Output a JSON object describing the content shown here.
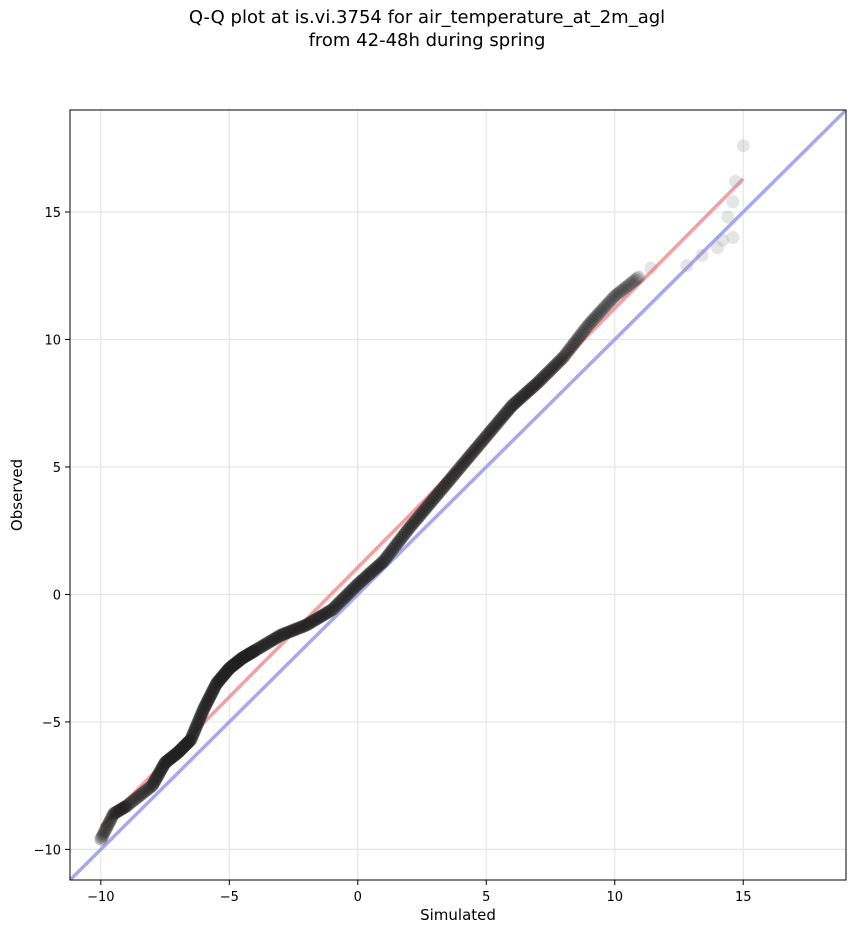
{
  "chart_data": {
    "type": "scatter",
    "title_line1": "Q-Q plot at is.vi.3754 for air_temperature_at_2m_agl",
    "title_line2": "from 42-48h during spring",
    "xlabel": "Simulated",
    "ylabel": "Observed",
    "xlim": [
      -11.2,
      19.0
    ],
    "ylim": [
      -11.2,
      19.0
    ],
    "xticks": [
      -10,
      -5,
      0,
      5,
      10,
      15
    ],
    "yticks": [
      -10,
      -5,
      0,
      5,
      10,
      15
    ],
    "xtick_labels": [
      "−10",
      "−5",
      "0",
      "5",
      "10",
      "15"
    ],
    "ytick_labels": [
      "−10",
      "−5",
      "0",
      "5",
      "10",
      "15"
    ],
    "grid": true,
    "quantile_curve": [
      [
        -10.0,
        -9.6
      ],
      [
        -9.5,
        -8.6
      ],
      [
        -9.0,
        -8.3
      ],
      [
        -8.0,
        -7.5
      ],
      [
        -7.5,
        -6.6
      ],
      [
        -7.0,
        -6.2
      ],
      [
        -6.5,
        -5.7
      ],
      [
        -6.0,
        -4.5
      ],
      [
        -5.5,
        -3.5
      ],
      [
        -5.0,
        -2.9
      ],
      [
        -4.5,
        -2.5
      ],
      [
        -4.0,
        -2.2
      ],
      [
        -3.0,
        -1.6
      ],
      [
        -2.0,
        -1.2
      ],
      [
        -1.0,
        -0.6
      ],
      [
        0.0,
        0.4
      ],
      [
        1.0,
        1.3
      ],
      [
        2.0,
        2.6
      ],
      [
        3.0,
        3.8
      ],
      [
        4.0,
        5.0
      ],
      [
        5.0,
        6.2
      ],
      [
        6.0,
        7.4
      ],
      [
        7.0,
        8.3
      ],
      [
        8.0,
        9.3
      ],
      [
        9.0,
        10.6
      ],
      [
        10.0,
        11.7
      ],
      [
        11.0,
        12.5
      ]
    ],
    "tail_points": [
      [
        11.4,
        12.8
      ],
      [
        12.8,
        12.9
      ],
      [
        13.4,
        13.3
      ],
      [
        14.0,
        13.6
      ],
      [
        14.2,
        13.9
      ],
      [
        14.6,
        14.0
      ],
      [
        14.4,
        14.8
      ],
      [
        14.6,
        15.4
      ],
      [
        14.7,
        16.2
      ],
      [
        15.0,
        17.6
      ]
    ],
    "series": [
      {
        "name": "quantiles",
        "color": "#222222"
      },
      {
        "name": "fit",
        "color": "#f08080",
        "x": [
          -10.0,
          15.0
        ],
        "y": [
          -9.1,
          16.3
        ]
      },
      {
        "name": "identity",
        "color": "#9999ee",
        "x": [
          -11.2,
          19.0
        ],
        "y": [
          -11.2,
          19.0
        ]
      }
    ]
  }
}
